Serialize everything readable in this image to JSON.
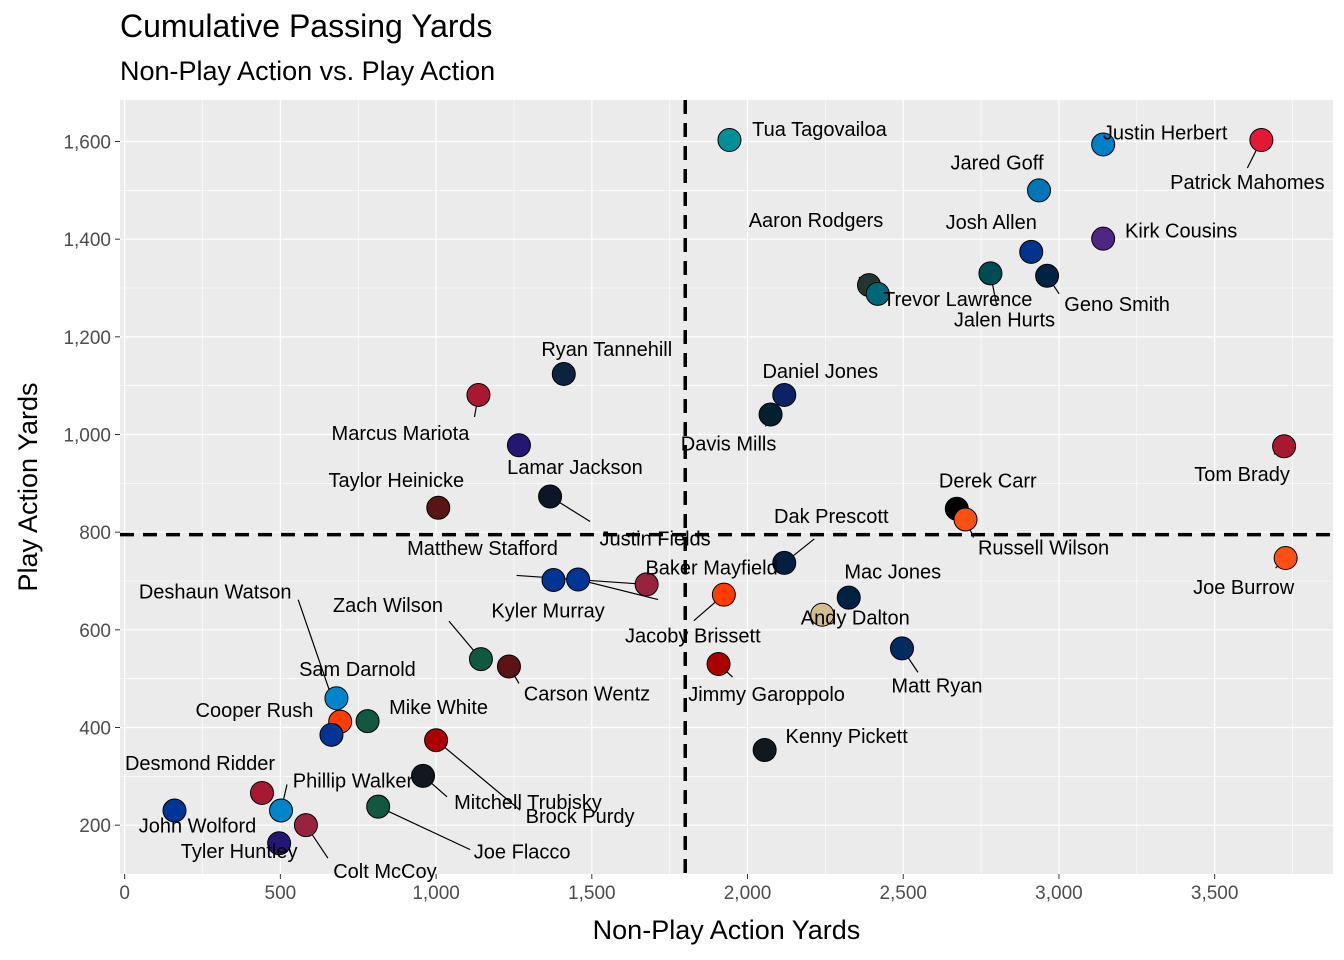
{
  "chart_data": {
    "type": "scatter",
    "title": "Cumulative Passing Yards",
    "subtitle": "Non-Play Action vs. Play Action",
    "xlabel": "Non-Play Action Yards",
    "ylabel": "Play Action Yards",
    "xlim": [
      -15,
      3880
    ],
    "ylim": [
      100,
      1685
    ],
    "x_ticks": [
      0,
      500,
      1000,
      1500,
      2000,
      2500,
      3000,
      3500
    ],
    "x_tick_labels": [
      "0",
      "500",
      "1,000",
      "1,500",
      "2,000",
      "2,500",
      "3,000",
      "3,500"
    ],
    "y_ticks": [
      200,
      400,
      600,
      800,
      1000,
      1200,
      1400,
      1600
    ],
    "y_tick_labels": [
      "200",
      "400",
      "600",
      "800",
      "1,000",
      "1,200",
      "1,400",
      "1,600"
    ],
    "reference_lines": {
      "x": 1800,
      "y": 795
    },
    "grid": true,
    "points": [
      {
        "name": "Patrick Mahomes",
        "x": 3650,
        "y": 1603,
        "color": "#E31837"
      },
      {
        "name": "Justin Herbert",
        "x": 3142,
        "y": 1594,
        "color": "#0080C6"
      },
      {
        "name": "Tua Tagovailoa",
        "x": 1942,
        "y": 1603,
        "color": "#008E97"
      },
      {
        "name": "Jared Goff",
        "x": 2936,
        "y": 1500,
        "color": "#0076B6"
      },
      {
        "name": "Josh Allen",
        "x": 2911,
        "y": 1374,
        "color": "#00338D"
      },
      {
        "name": "Kirk Cousins",
        "x": 3142,
        "y": 1401,
        "color": "#4F2683"
      },
      {
        "name": "Jalen Hurts",
        "x": 2780,
        "y": 1330,
        "color": "#004C54"
      },
      {
        "name": "Geno Smith",
        "x": 2962,
        "y": 1325,
        "color": "#002244"
      },
      {
        "name": "Aaron Rodgers",
        "x": 2390,
        "y": 1306,
        "color": "#203731"
      },
      {
        "name": "Trevor Lawrence",
        "x": 2418,
        "y": 1288,
        "color": "#006778"
      },
      {
        "name": "Ryan Tannehill",
        "x": 1410,
        "y": 1124,
        "color": "#0C2340"
      },
      {
        "name": "Daniel Jones",
        "x": 2118,
        "y": 1081,
        "color": "#0B2265"
      },
      {
        "name": "Marcus Mariota",
        "x": 1136,
        "y": 1081,
        "color": "#A71930"
      },
      {
        "name": "Davis Mills",
        "x": 2074,
        "y": 1041,
        "color": "#03202F"
      },
      {
        "name": "Lamar Jackson",
        "x": 1266,
        "y": 978,
        "color": "#241773"
      },
      {
        "name": "Tom Brady",
        "x": 3723,
        "y": 976,
        "color": "#A71930"
      },
      {
        "name": "Justin Fields",
        "x": 1366,
        "y": 873,
        "color": "#0B162A"
      },
      {
        "name": "Taylor Heinicke",
        "x": 1007,
        "y": 850,
        "color": "#5A1414"
      },
      {
        "name": "Derek Carr",
        "x": 2672,
        "y": 848,
        "color": "#000000"
      },
      {
        "name": "Russell Wilson",
        "x": 2700,
        "y": 826,
        "color": "#FB4F14"
      },
      {
        "name": "Joe Burrow",
        "x": 3728,
        "y": 747,
        "color": "#FB4F14"
      },
      {
        "name": "Dak Prescott",
        "x": 2118,
        "y": 737,
        "color": "#041E42"
      },
      {
        "name": "Matthew Stafford",
        "x": 1377,
        "y": 702,
        "color": "#003594"
      },
      {
        "name": "Kyler Murray",
        "x": 1456,
        "y": 703,
        "color": "#003594"
      },
      {
        "name": "Baker Mayfield",
        "x": 1676,
        "y": 693,
        "color": "#97233F"
      },
      {
        "name": "Jacoby Brissett",
        "x": 1924,
        "y": 672,
        "color": "#FF3C00"
      },
      {
        "name": "Mac Jones",
        "x": 2325,
        "y": 666,
        "color": "#002244"
      },
      {
        "name": "Andy Dalton",
        "x": 2240,
        "y": 631,
        "color": "#D3BC8D"
      },
      {
        "name": "Matt Ryan",
        "x": 2496,
        "y": 562,
        "color": "#002C5F"
      },
      {
        "name": "Zach Wilson",
        "x": 1144,
        "y": 540,
        "color": "#125740"
      },
      {
        "name": "Jimmy Garoppolo",
        "x": 1907,
        "y": 530,
        "color": "#AA0000"
      },
      {
        "name": "Carson Wentz",
        "x": 1234,
        "y": 525,
        "color": "#5A1414"
      },
      {
        "name": "Sam Darnold",
        "x": 680,
        "y": 460,
        "color": "#0085CA"
      },
      {
        "name": "Mike White",
        "x": 780,
        "y": 413,
        "color": "#125740"
      },
      {
        "name": "Deshaun Watson",
        "x": 692,
        "y": 412,
        "color": "#FF3C00"
      },
      {
        "name": "Cooper Rush",
        "x": 664,
        "y": 385,
        "color": "#003594"
      },
      {
        "name": "Brock Purdy",
        "x": 1000,
        "y": 374,
        "color": "#AA0000"
      },
      {
        "name": "Kenny Pickett",
        "x": 2055,
        "y": 354,
        "color": "#101820"
      },
      {
        "name": "Mitchell Trubisky",
        "x": 958,
        "y": 301,
        "color": "#101820"
      },
      {
        "name": "Desmond Ridder",
        "x": 441,
        "y": 266,
        "color": "#A71930"
      },
      {
        "name": "Joe Flacco",
        "x": 814,
        "y": 238,
        "color": "#125740"
      },
      {
        "name": "Phillip Walker",
        "x": 502,
        "y": 230,
        "color": "#0085CA"
      },
      {
        "name": "John Wolford",
        "x": 160,
        "y": 230,
        "color": "#003594"
      },
      {
        "name": "Colt McCoy",
        "x": 582,
        "y": 200,
        "color": "#97233F"
      },
      {
        "name": "Tyler Huntley",
        "x": 496,
        "y": 163,
        "color": "#241773"
      }
    ]
  }
}
